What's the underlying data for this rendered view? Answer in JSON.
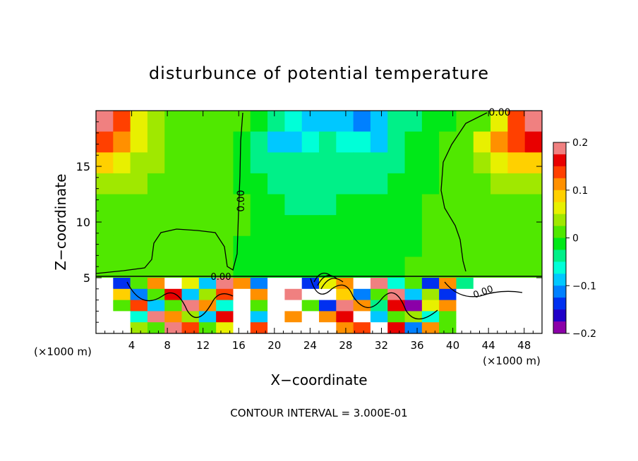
{
  "chart_data": {
    "type": "heatmap",
    "title": "disturbunce of potential temperature",
    "xlabel": "X−coordinate",
    "ylabel": "Z−coordinate",
    "x_unit_left": "(×1000 m)",
    "x_unit_right": "(×1000 m)",
    "xlim": [
      0,
      50
    ],
    "ylim": [
      0,
      20
    ],
    "x_ticks": [
      4,
      8,
      12,
      16,
      20,
      24,
      28,
      32,
      36,
      40,
      44,
      48
    ],
    "y_ticks": [
      5,
      10,
      15
    ],
    "colorbar": {
      "range": [
        -0.2,
        0.2
      ],
      "tick_values": [
        0.2,
        0.1,
        0,
        -0.1,
        -0.2
      ],
      "tick_labels": [
        "0.2",
        "0.1",
        "0",
        "−0.1",
        "−0.2"
      ],
      "colors": [
        "#8b00a8",
        "#2000c8",
        "#0030f0",
        "#0080ff",
        "#00c8ff",
        "#00ffd8",
        "#00f088",
        "#00e818",
        "#50e800",
        "#a0e800",
        "#e8f000",
        "#ffd000",
        "#ff9000",
        "#ff4000",
        "#e80000",
        "#f08080"
      ]
    },
    "contour_labels": [
      "0.00",
      "0.00",
      "0.00",
      "0.00"
    ],
    "contour_interval_text": "CONTOUR INTERVAL = 3.000E-01",
    "field_rows": [
      [
        0.2,
        0.15,
        0.07,
        0.03,
        0.02,
        0.01,
        0.01,
        0.0,
        0.0,
        -0.02,
        -0.04,
        -0.06,
        -0.08,
        -0.1,
        -0.1,
        -0.12,
        -0.1,
        -0.05,
        -0.03,
        -0.02,
        -0.01,
        0.0,
        0.02,
        0.06,
        0.15,
        0.2
      ],
      [
        0.15,
        0.1,
        0.06,
        0.03,
        0.02,
        0.01,
        0.01,
        0.0,
        -0.01,
        -0.05,
        -0.1,
        -0.08,
        -0.06,
        -0.05,
        -0.06,
        -0.07,
        -0.08,
        -0.04,
        -0.02,
        -0.01,
        0.0,
        0.02,
        0.06,
        0.12,
        0.14,
        0.16
      ],
      [
        0.08,
        0.05,
        0.04,
        0.03,
        0.02,
        0.01,
        0.0,
        0.0,
        -0.01,
        -0.03,
        -0.05,
        -0.05,
        -0.05,
        -0.04,
        -0.04,
        -0.05,
        -0.05,
        -0.03,
        -0.02,
        -0.01,
        0.0,
        0.02,
        0.04,
        0.07,
        0.08,
        0.09
      ],
      [
        0.04,
        0.03,
        0.03,
        0.02,
        0.02,
        0.01,
        0.01,
        0.0,
        -0.01,
        -0.02,
        -0.03,
        -0.04,
        -0.04,
        -0.04,
        -0.03,
        -0.03,
        -0.03,
        -0.02,
        -0.01,
        -0.01,
        0.0,
        0.01,
        0.02,
        0.03,
        0.03,
        0.04
      ],
      [
        0.02,
        0.02,
        0.02,
        0.02,
        0.01,
        0.01,
        0.01,
        0.0,
        0.0,
        -0.01,
        -0.02,
        -0.03,
        -0.03,
        -0.03,
        -0.02,
        -0.02,
        -0.02,
        -0.02,
        -0.01,
        0.0,
        0.01,
        0.01,
        0.01,
        0.02,
        0.02,
        0.02
      ],
      [
        0.02,
        0.02,
        0.01,
        0.01,
        0.01,
        0.01,
        0.0,
        0.0,
        0.0,
        -0.01,
        -0.02,
        -0.02,
        -0.02,
        -0.02,
        -0.02,
        -0.02,
        -0.02,
        -0.01,
        -0.01,
        0.0,
        0.01,
        0.01,
        0.01,
        0.01,
        0.02,
        0.02
      ],
      [
        0.02,
        0.01,
        0.01,
        0.01,
        0.01,
        0.0,
        0.0,
        0.0,
        -0.01,
        -0.01,
        -0.02,
        -0.02,
        -0.02,
        -0.02,
        -0.02,
        -0.02,
        -0.01,
        -0.01,
        -0.01,
        0.0,
        0.0,
        0.01,
        0.01,
        0.01,
        0.01,
        0.02
      ],
      [
        0.01,
        0.01,
        0.01,
        0.01,
        0.0,
        0.0,
        0.0,
        0.0,
        -0.01,
        -0.01,
        -0.02,
        -0.02,
        -0.02,
        -0.02,
        -0.02,
        -0.01,
        -0.01,
        -0.01,
        0.0,
        0.0,
        0.0,
        0.01,
        0.01,
        0.01,
        0.01,
        0.02
      ]
    ],
    "lower_rows": [
      [
        0.3,
        -0.15,
        0.02,
        0.12,
        0.3,
        0.06,
        -0.08,
        0.18,
        0.1,
        -0.12,
        0.3,
        0.3,
        -0.15,
        0.06,
        0.12,
        0.3,
        0.18,
        -0.06,
        0.02,
        -0.15,
        0.12,
        -0.05,
        0.3,
        0.3,
        0.3,
        0.3
      ],
      [
        0.3,
        0.08,
        -0.12,
        0.02,
        0.16,
        -0.1,
        0.04,
        0.14,
        0.3,
        0.12,
        0.3,
        0.2,
        0.3,
        0.3,
        0.08,
        -0.12,
        0.02,
        0.18,
        -0.1,
        0.04,
        -0.15,
        0.3,
        0.3,
        0.3,
        0.3,
        0.3
      ],
      [
        0.3,
        0.02,
        0.14,
        -0.08,
        0.0,
        0.2,
        0.12,
        -0.06,
        0.3,
        0.02,
        0.3,
        0.3,
        0.02,
        -0.15,
        0.18,
        0.12,
        -0.05,
        0.16,
        -0.2,
        0.06,
        0.1,
        0.3,
        0.3,
        0.3,
        0.3,
        0.3
      ],
      [
        0.3,
        0.3,
        -0.06,
        0.18,
        0.12,
        0.04,
        -0.1,
        0.16,
        0.3,
        -0.08,
        0.3,
        0.12,
        0.3,
        0.1,
        0.16,
        0.3,
        -0.1,
        0.02,
        0.04,
        -0.06,
        0.02,
        0.3,
        0.3,
        0.3,
        0.3,
        0.3
      ],
      [
        0.3,
        0.3,
        0.04,
        0.02,
        0.18,
        0.14,
        0.02,
        0.06,
        0.3,
        0.14,
        0.3,
        0.3,
        0.3,
        0.3,
        0.12,
        0.14,
        0.3,
        0.16,
        -0.12,
        0.1,
        0.02,
        0.3,
        0.3,
        0.3,
        0.3,
        0.3
      ]
    ]
  }
}
